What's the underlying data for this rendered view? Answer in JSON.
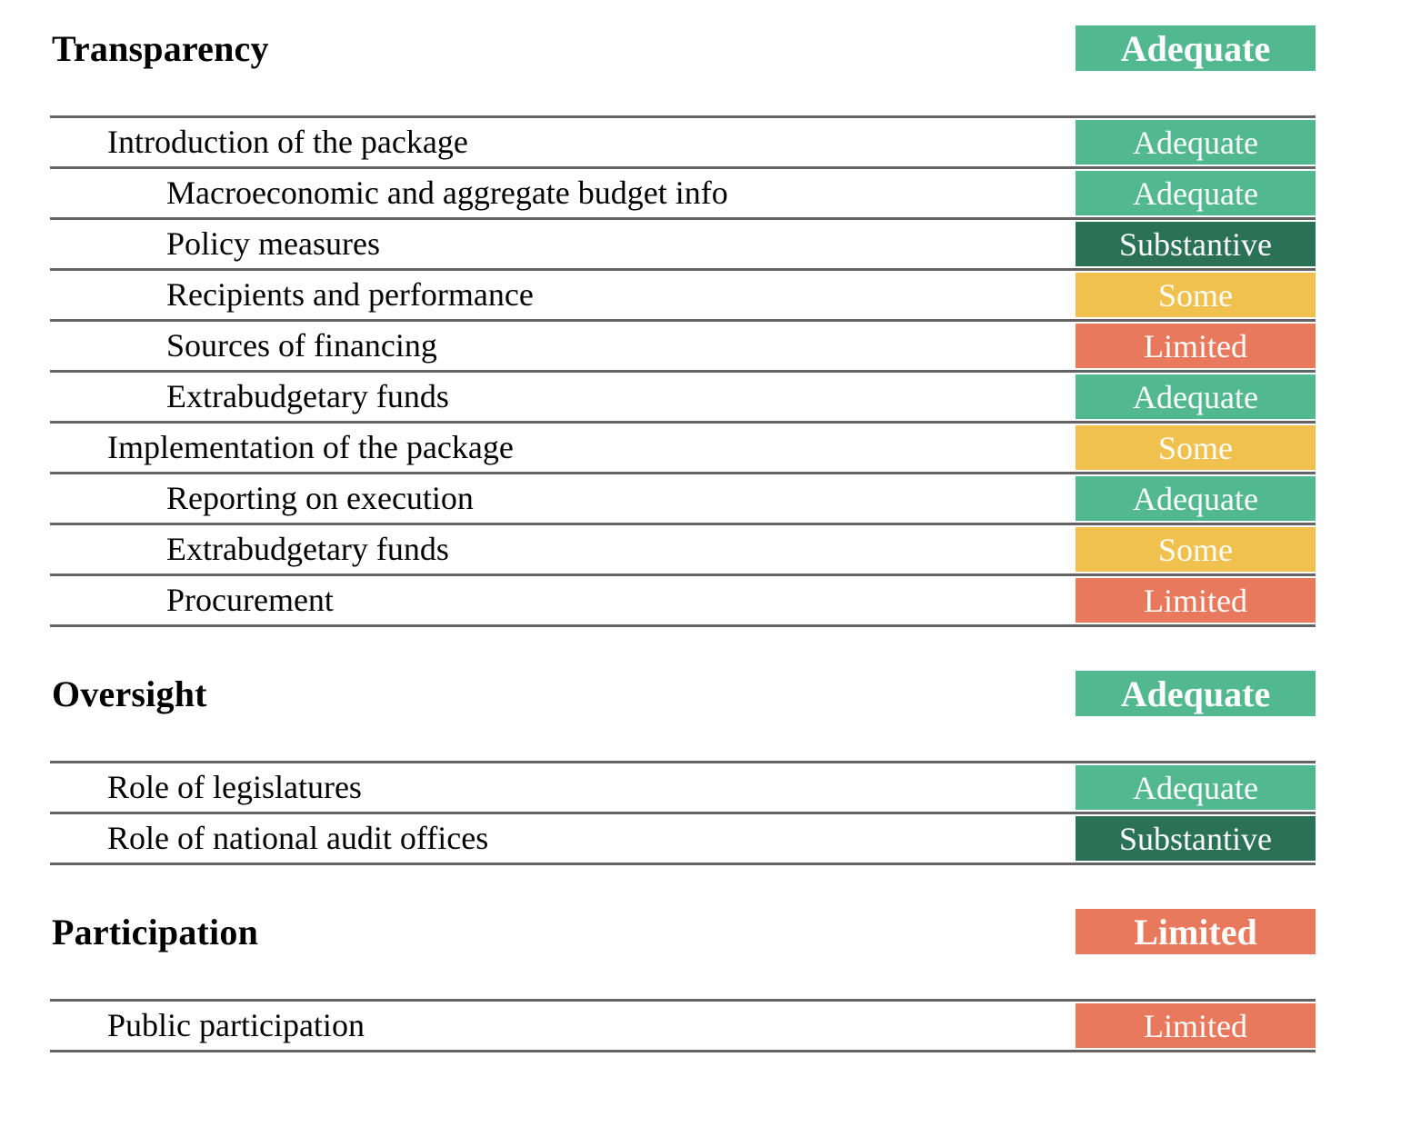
{
  "colors": {
    "adequate": "#52b890",
    "substantive": "#2a7158",
    "some": "#f0c14e",
    "limited": "#e9795d",
    "rule_line": "#636363",
    "badge_text": "#ffffff"
  },
  "sections": [
    {
      "title": "Transparency",
      "rating": {
        "label": "Adequate",
        "level": "adequate"
      },
      "rows": [
        {
          "label": "Introduction of the package",
          "indent": 1,
          "rating": "Adequate",
          "level": "adequate"
        },
        {
          "label": "Macroeconomic and aggregate budget info",
          "indent": 2,
          "rating": "Adequate",
          "level": "adequate"
        },
        {
          "label": "Policy measures",
          "indent": 2,
          "rating": "Substantive",
          "level": "substantive"
        },
        {
          "label": "Recipients and performance",
          "indent": 2,
          "rating": "Some",
          "level": "some"
        },
        {
          "label": "Sources of financing",
          "indent": 2,
          "rating": "Limited",
          "level": "limited"
        },
        {
          "label": "Extrabudgetary funds",
          "indent": 2,
          "rating": "Adequate",
          "level": "adequate"
        },
        {
          "label": "Implementation of the package",
          "indent": 1,
          "rating": "Some",
          "level": "some"
        },
        {
          "label": "Reporting on execution",
          "indent": 2,
          "rating": "Adequate",
          "level": "adequate"
        },
        {
          "label": "Extrabudgetary funds",
          "indent": 2,
          "rating": "Some",
          "level": "some"
        },
        {
          "label": "Procurement",
          "indent": 2,
          "rating": "Limited",
          "level": "limited"
        }
      ]
    },
    {
      "title": "Oversight",
      "rating": {
        "label": "Adequate",
        "level": "adequate"
      },
      "rows": [
        {
          "label": "Role of legislatures",
          "indent": 1,
          "rating": "Adequate",
          "level": "adequate"
        },
        {
          "label": "Role of national audit offices",
          "indent": 1,
          "rating": "Substantive",
          "level": "substantive"
        }
      ]
    },
    {
      "title": "Participation",
      "rating": {
        "label": "Limited",
        "level": "limited"
      },
      "rows": [
        {
          "label": "Public participation",
          "indent": 1,
          "rating": "Limited",
          "level": "limited"
        }
      ]
    }
  ]
}
